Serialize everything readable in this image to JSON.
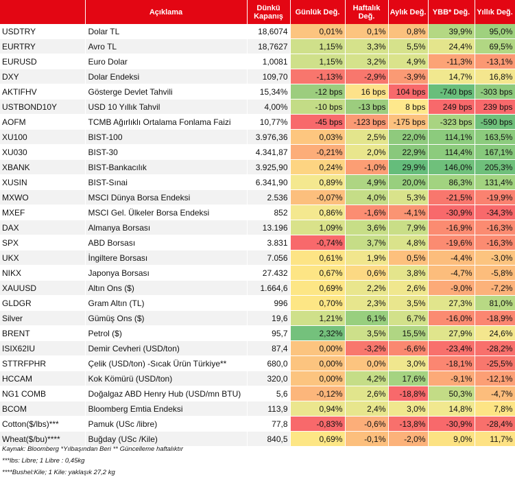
{
  "headers": {
    "code": "",
    "description": "Açıklama",
    "close": "Dünkü Kapanış",
    "daily": "Günlük Değ.",
    "weekly": "Haftalık Değ.",
    "monthly": "Aylık Değ.",
    "ytd": "YBB* Değ.",
    "yearly": "Yıllık Değ."
  },
  "rows": [
    {
      "code": "USDTRY",
      "desc": "Dolar TL",
      "close": "18,6074",
      "daily": "0,01%",
      "weekly": "0,1%",
      "monthly": "0,8%",
      "ytd": "39,9%",
      "yearly": "95,0%",
      "c": [
        "#fcc47f",
        "#fcc47f",
        "#fbc17d",
        "#b4d883",
        "#9fd17e"
      ]
    },
    {
      "code": "EURTRY",
      "desc": "Avro TL",
      "close": "18,7627",
      "daily": "1,15%",
      "weekly": "3,3%",
      "monthly": "5,5%",
      "ytd": "24,4%",
      "yearly": "69,5%",
      "c": [
        "#cfe08a",
        "#d5e28b",
        "#d6e28b",
        "#e4e58c",
        "#b1d783"
      ]
    },
    {
      "code": "EURUSD",
      "desc": "Euro Dolar",
      "close": "1,0081",
      "daily": "1,15%",
      "weekly": "3,2%",
      "monthly": "4,9%",
      "ytd": "-11,3%",
      "yearly": "-13,1%",
      "c": [
        "#cfe08a",
        "#d5e28b",
        "#dae38b",
        "#fca376",
        "#fb9873"
      ]
    },
    {
      "code": "DXY",
      "desc": "Dolar Endeksi",
      "close": "109,70",
      "daily": "-1,13%",
      "weekly": "-2,9%",
      "monthly": "-3,9%",
      "ytd": "14,7%",
      "yearly": "16,8%",
      "c": [
        "#f8766d",
        "#f8776d",
        "#fa9a74",
        "#f1e88f",
        "#f4e68e"
      ]
    },
    {
      "code": "AKTIFHV",
      "desc": "Gösterge Devlet Tahvili",
      "close": "15,34%",
      "daily": "-12 bps",
      "weekly": "16 bps",
      "monthly": "104 bps",
      "ytd": "-740 bps",
      "yearly": "-303 bps",
      "c": [
        "#9ccd7e",
        "#fde28a",
        "#f8696b",
        "#69be7b",
        "#8fca7d"
      ]
    },
    {
      "code": "USTBOND10Y",
      "desc": "USD 10 Yıllık Tahvil",
      "close": "4,00%",
      "daily": "-10 bps",
      "weekly": "-13 bps",
      "monthly": "8 bps",
      "ytd": "249 bps",
      "yearly": "239 bps",
      "c": [
        "#c3dc86",
        "#9ccd7e",
        "#fee88c",
        "#f8696b",
        "#f8696b"
      ]
    },
    {
      "code": "AOFM",
      "desc": "TCMB Ağırlıklı Ortalama Fonlama Faizi",
      "close": "10,77%",
      "daily": "-45 bps",
      "weekly": "-123 bps",
      "monthly": "-175 bps",
      "ytd": "-323 bps",
      "yearly": "-590 bps",
      "c": [
        "#f8696b",
        "#fa9a74",
        "#fcc17e",
        "#a9d481",
        "#6fc07b"
      ]
    },
    {
      "code": "XU100",
      "desc": "BIST-100",
      "close": "3.976,36",
      "daily": "0,03%",
      "weekly": "2,5%",
      "monthly": "22,0%",
      "ytd": "114,1%",
      "yearly": "163,5%",
      "c": [
        "#fdc67f",
        "#e3e58c",
        "#8fca7d",
        "#8ccb7d",
        "#8ccb7d"
      ]
    },
    {
      "code": "XU030",
      "desc": "BIST-30",
      "close": "4.341,87",
      "daily": "-0,21%",
      "weekly": "2,0%",
      "monthly": "22,9%",
      "ytd": "114,4%",
      "yearly": "167,1%",
      "c": [
        "#fcad79",
        "#e9e68d",
        "#89c87c",
        "#8ccb7d",
        "#87c97c"
      ]
    },
    {
      "code": "XBANK",
      "desc": "BIST-Bankacılık",
      "close": "3.925,90",
      "daily": "0,24%",
      "weekly": "-1,0%",
      "monthly": "29,9%",
      "ytd": "146,0%",
      "yearly": "205,3%",
      "c": [
        "#fdd482",
        "#fc9e74",
        "#65bd7b",
        "#6fc07b",
        "#6fc07b"
      ]
    },
    {
      "code": "XUSIN",
      "desc": "BIST-Sınai",
      "close": "6.341,90",
      "daily": "0,89%",
      "weekly": "4,9%",
      "monthly": "20,0%",
      "ytd": "86,3%",
      "yearly": "131,4%",
      "c": [
        "#f4e88f",
        "#aed583",
        "#98cf7e",
        "#a2d380",
        "#a2d380"
      ]
    },
    {
      "code": "MXWO",
      "desc": "MSCI Dünya Borsa Endeksi",
      "close": "2.536",
      "daily": "-0,07%",
      "weekly": "4,0%",
      "monthly": "5,3%",
      "ytd": "-21,5%",
      "yearly": "-19,9%",
      "c": [
        "#fcbf7d",
        "#c5dd87",
        "#d9e38b",
        "#f8776d",
        "#fa8270"
      ]
    },
    {
      "code": "MXEF",
      "desc": "MSCI Gel. Ülkeler Borsa Endeksi",
      "close": "852",
      "daily": "0,86%",
      "weekly": "-1,6%",
      "monthly": "-4,1%",
      "ytd": "-30,9%",
      "yearly": "-34,3%",
      "c": [
        "#f4e88f",
        "#fb8d72",
        "#fa9473",
        "#f8696b",
        "#f8696b"
      ]
    },
    {
      "code": "DAX",
      "desc": "Almanya Borsası",
      "close": "13.196",
      "daily": "1,09%",
      "weekly": "3,6%",
      "monthly": "7,9%",
      "ytd": "-16,9%",
      "yearly": "-16,3%",
      "c": [
        "#d9e28a",
        "#c7de87",
        "#c9de87",
        "#fb8b71",
        "#fb8b71"
      ]
    },
    {
      "code": "SPX",
      "desc": "ABD Borsası",
      "close": "3.831",
      "daily": "-0,74%",
      "weekly": "3,7%",
      "monthly": "4,8%",
      "ytd": "-19,6%",
      "yearly": "-16,3%",
      "c": [
        "#f8696b",
        "#c6dd87",
        "#dae38b",
        "#fb8b71",
        "#fb8b71"
      ]
    },
    {
      "code": "UKX",
      "desc": "İngiltere Borsası",
      "close": "7.056",
      "daily": "0,61%",
      "weekly": "1,9%",
      "monthly": "0,5%",
      "ytd": "-4,4%",
      "yearly": "-3,0%",
      "c": [
        "#fde485",
        "#f1e68d",
        "#fdc07d",
        "#fcbd7c",
        "#fcc47f"
      ]
    },
    {
      "code": "NIKX",
      "desc": "Japonya Borsası",
      "close": "27.432",
      "daily": "0,67%",
      "weekly": "0,6%",
      "monthly": "3,8%",
      "ytd": "-4,7%",
      "yearly": "-5,8%",
      "c": [
        "#fde585",
        "#fcd983",
        "#e4e58c",
        "#fcbd7c",
        "#fcbd7c"
      ]
    },
    {
      "code": "XAUUSD",
      "desc": "Altın Ons ($)",
      "close": "1.664,6",
      "daily": "0,69%",
      "weekly": "2,2%",
      "monthly": "2,6%",
      "ytd": "-9,0%",
      "yearly": "-7,2%",
      "c": [
        "#fde685",
        "#e9e68d",
        "#f0e78e",
        "#fcaa78",
        "#fcb27a"
      ]
    },
    {
      "code": "GLDGR",
      "desc": "Gram Altın (TL)",
      "close": "996",
      "daily": "0,70%",
      "weekly": "2,3%",
      "monthly": "3,5%",
      "ytd": "27,3%",
      "yearly": "81,0%",
      "c": [
        "#fde685",
        "#e7e68d",
        "#e9e68d",
        "#e1e58c",
        "#b8d984"
      ]
    },
    {
      "code": "Silver",
      "desc": "Gümüş Ons ($)",
      "close": "19,6",
      "daily": "1,21%",
      "weekly": "6,1%",
      "monthly": "6,7%",
      "ytd": "-16,0%",
      "yearly": "-18,9%",
      "c": [
        "#cfe08a",
        "#98cf7e",
        "#d2e18a",
        "#fb8b71",
        "#fb8671"
      ]
    },
    {
      "code": "BRENT",
      "desc": "Petrol ($)",
      "close": "95,7",
      "daily": "2,32%",
      "weekly": "3,5%",
      "monthly": "15,5%",
      "ytd": "27,9%",
      "yearly": "24,6%",
      "c": [
        "#74c17c",
        "#cde08a",
        "#b0d683",
        "#e0e58c",
        "#f4e68e"
      ]
    },
    {
      "code": "ISIX62IU",
      "desc": "Demir Cevheri (USD/ton)",
      "close": "87,4",
      "daily": "0,00%",
      "weekly": "-3,2%",
      "monthly": "-6,6%",
      "ytd": "-23,4%",
      "yearly": "-28,2%",
      "c": [
        "#fcc47f",
        "#f8776d",
        "#fa8870",
        "#f8706c",
        "#f8706c"
      ]
    },
    {
      "code": "STTRFPHR",
      "desc": "Çelik (USD/ton) -Sıcak Ürün Türkiye**",
      "close": "680,0",
      "daily": "0,00%",
      "weekly": "0,0%",
      "monthly": "3,0%",
      "ytd": "-18,1%",
      "yearly": "-25,5%",
      "c": [
        "#fcc47f",
        "#fcc47f",
        "#f0e78e",
        "#fb8671",
        "#f8776d"
      ]
    },
    {
      "code": "HCCAM",
      "desc": "Kok Kömürü (USD/ton)",
      "close": "320,0",
      "daily": "0,00%",
      "weekly": "4,2%",
      "monthly": "17,6%",
      "ytd": "-9,1%",
      "yearly": "-12,1%",
      "c": [
        "#fcc47f",
        "#c5dd87",
        "#a5d381",
        "#fcaa78",
        "#fc9f75"
      ]
    },
    {
      "code": "NG1 COMB",
      "desc": "Doğalgaz ABD Henry Hub (USD/mn BTU)",
      "close": "5,6",
      "daily": "-0,12%",
      "weekly": "2,6%",
      "monthly": "-18,8%",
      "ytd": "50,3%",
      "yearly": "-4,7%",
      "c": [
        "#fcb67b",
        "#e1e58c",
        "#f8696b",
        "#c3dc86",
        "#fcbd7c"
      ]
    },
    {
      "code": "BCOM",
      "desc": "Bloomberg Emtia Endeksi",
      "close": "113,9",
      "daily": "0,94%",
      "weekly": "2,4%",
      "monthly": "3,0%",
      "ytd": "14,8%",
      "yearly": "7,8%",
      "c": [
        "#ebe68e",
        "#e7e68d",
        "#f0e78e",
        "#f1e88f",
        "#fde485"
      ]
    },
    {
      "code": "Cotton($/lbs)***",
      "desc": "Pamuk (USc /libre)",
      "close": "77,8",
      "daily": "-0,83%",
      "weekly": "-0,6%",
      "monthly": "-13,8%",
      "ytd": "-30,9%",
      "yearly": "-28,4%",
      "c": [
        "#f8696b",
        "#fcae79",
        "#f8706c",
        "#f8696b",
        "#f8706c"
      ]
    },
    {
      "code": "Wheat($/bu)****",
      "desc": "Buğday (USc /Kile)",
      "close": "840,5",
      "daily": "0,69%",
      "weekly": "-0,1%",
      "monthly": "-2,0%",
      "ytd": "9,0%",
      "yearly": "11,7%",
      "c": [
        "#fde685",
        "#fcbf7d",
        "#fcb27a",
        "#fce283",
        "#fee284"
      ]
    }
  ],
  "footnotes": [
    "Kaynak: Bloomberg *Yılbaşından Beri  ** Güncelleme haftalıktır",
    "***lbs: Libre; 1 Libre : 0,45kg",
    "****Bushel:Kile; 1 Kile: yaklaşık 27,2 kg"
  ]
}
